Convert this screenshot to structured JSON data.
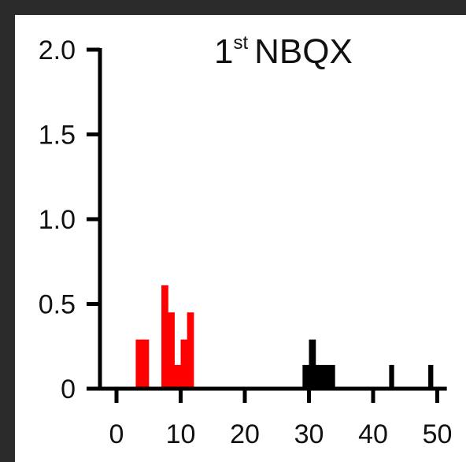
{
  "chart_data": {
    "type": "bar",
    "title_main": "1",
    "title_sup": "st",
    "title_rest": "NBQX",
    "xlabel": "",
    "ylabel": "",
    "xlim": [
      -3,
      51
    ],
    "ylim": [
      0,
      2.0
    ],
    "x_ticks": [
      0,
      10,
      20,
      30,
      40,
      50
    ],
    "x_tick_labels": [
      "0",
      "10",
      "20",
      "30",
      "40",
      "50"
    ],
    "y_ticks": [
      0,
      0.5,
      1.0,
      1.5,
      2.0
    ],
    "y_tick_labels": [
      "0",
      "0.5",
      "1.0",
      "1.5",
      "2.0"
    ],
    "grid": false,
    "bin_width": 1,
    "series": [
      {
        "color": "#ff0000",
        "bins": [
          {
            "x0": 3,
            "x1": 4,
            "value": 0.29
          },
          {
            "x0": 4,
            "x1": 5,
            "value": 0.29
          },
          {
            "x0": 7,
            "x1": 8,
            "value": 0.61
          },
          {
            "x0": 8,
            "x1": 9,
            "value": 0.45
          },
          {
            "x0": 9,
            "x1": 10,
            "value": 0.14
          },
          {
            "x0": 10,
            "x1": 11,
            "value": 0.29
          },
          {
            "x0": 11,
            "x1": 12,
            "value": 0.45
          }
        ]
      },
      {
        "color": "#000000",
        "bins": [
          {
            "x0": 29,
            "x1": 30,
            "value": 0.14
          },
          {
            "x0": 30,
            "x1": 31,
            "value": 0.29
          },
          {
            "x0": 31,
            "x1": 32,
            "value": 0.14
          },
          {
            "x0": 32,
            "x1": 33,
            "value": 0.14
          },
          {
            "x0": 33,
            "x1": 34,
            "value": 0.14
          },
          {
            "x0": 42.5,
            "x1": 43.2,
            "value": 0.14
          },
          {
            "x0": 48.6,
            "x1": 49.3,
            "value": 0.14
          }
        ]
      }
    ]
  }
}
